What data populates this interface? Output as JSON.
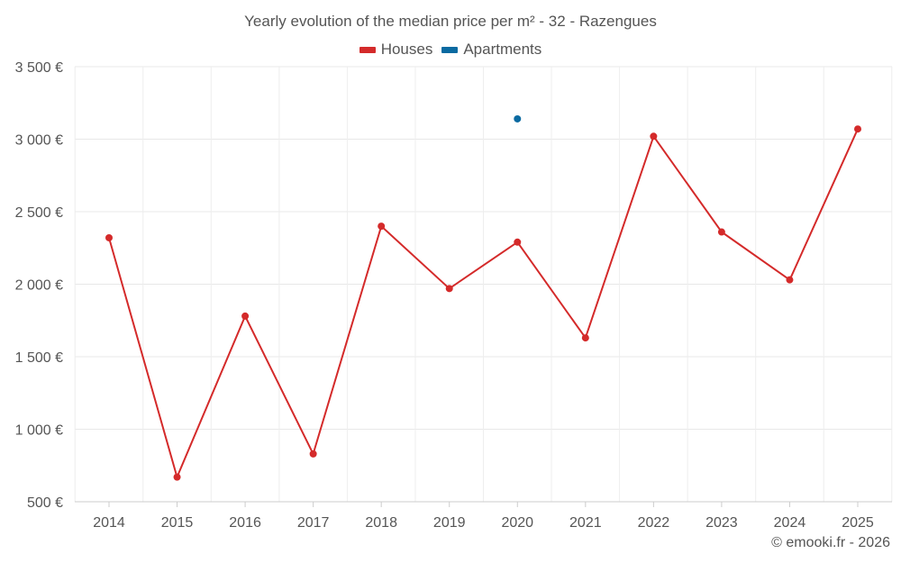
{
  "chart_data": {
    "type": "line",
    "title": "Yearly evolution of the median price per m² - 32 - Razengues",
    "categories": [
      "2014",
      "2015",
      "2016",
      "2017",
      "2018",
      "2019",
      "2020",
      "2021",
      "2022",
      "2023",
      "2024",
      "2025"
    ],
    "series": [
      {
        "name": "Houses",
        "color": "#d42a2a",
        "values": [
          2320,
          670,
          1780,
          830,
          2400,
          1970,
          2290,
          1630,
          3020,
          2360,
          2030,
          3070
        ]
      },
      {
        "name": "Apartments",
        "color": "#0a6aa1",
        "values": [
          null,
          null,
          null,
          null,
          null,
          null,
          3140,
          null,
          null,
          null,
          null,
          null
        ]
      }
    ],
    "ylim": [
      500,
      3500
    ],
    "yticks": [
      500,
      1000,
      1500,
      2000,
      2500,
      3000,
      3500
    ],
    "ytick_labels": [
      "500 €",
      "1 000 €",
      "1 500 €",
      "2 000 €",
      "2 500 €",
      "3 000 €",
      "3 500 €"
    ],
    "grid": true,
    "legend_position": "top-center"
  },
  "credit": "© emooki.fr - 2026"
}
